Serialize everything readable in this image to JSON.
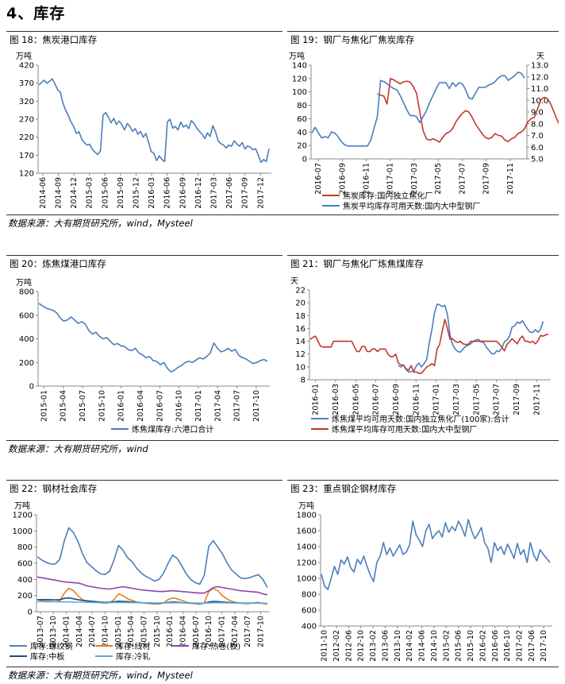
{
  "section_title": "4、库存",
  "sources": {
    "row1": "数据来源：大有期货研究所，wind，Mysteel",
    "row2": "数据来源：大有期货研究所，wind",
    "row3": "数据来源：大有期货研究所，wind，Mysteel"
  },
  "chart_data": [
    {
      "id": "fig18",
      "type": "line",
      "title": "图 18：焦炭港口库存",
      "unit_label": "万吨",
      "ylim": [
        120,
        420
      ],
      "yticks": [
        120,
        170,
        220,
        270,
        320,
        370,
        420
      ],
      "x_tick_labels": [
        "2014-06",
        "2014-09",
        "2014-12",
        "2015-03",
        "2015-06",
        "2015-09",
        "2015-12",
        "2016-03",
        "2016-06",
        "2016-09",
        "2016-12",
        "2017-03",
        "2017-06",
        "2017-09",
        "2017-12"
      ],
      "series": [
        {
          "color": "#4a7ebb",
          "values": [
            365,
            372,
            378,
            370,
            375,
            382,
            368,
            352,
            345,
            315,
            295,
            280,
            262,
            250,
            230,
            235,
            215,
            205,
            198,
            200,
            186,
            178,
            172,
            182,
            282,
            288,
            275,
            260,
            272,
            255,
            265,
            255,
            240,
            258,
            250,
            236,
            244,
            228,
            236,
            220,
            230,
            205,
            180,
            175,
            155,
            168,
            158,
            152,
            262,
            270,
            245,
            250,
            240,
            262,
            248,
            254,
            244,
            266,
            258,
            245,
            236,
            228,
            216,
            232,
            222,
            252,
            235,
            210,
            202,
            198,
            190,
            198,
            195,
            210,
            201,
            195,
            205,
            187,
            196,
            192,
            185,
            188,
            170,
            150,
            158,
            152,
            188
          ]
        }
      ]
    },
    {
      "id": "fig19",
      "type": "line",
      "title": "图 19：钢厂与焦化厂焦炭库存",
      "unit_label": "万吨",
      "unit_label_right": "天",
      "ylim": [
        0,
        140
      ],
      "yticks": [
        0,
        20,
        40,
        60,
        80,
        100,
        120,
        140
      ],
      "y2lim": [
        5.0,
        13.0
      ],
      "y2ticks": [
        "5.0",
        "6.0",
        "7.0",
        "8.0",
        "9.0",
        "10.0",
        "11.0",
        "12.0",
        "13.0"
      ],
      "x_tick_labels": [
        "2016-07",
        "2016-09",
        "2016-11",
        "2017-01",
        "2017-03",
        "2017-05",
        "2017-07",
        "2017-09",
        "2017-11"
      ],
      "series": [
        {
          "name": "焦炭库存:国内独立焦化厂",
          "color": "#c0392b",
          "axis": "left",
          "start_index": 20,
          "values": [
            97,
            95,
            94,
            82,
            120,
            118,
            115,
            112,
            115,
            116,
            115,
            108,
            98,
            70,
            42,
            30,
            28,
            30,
            28,
            25,
            32,
            38,
            40,
            45,
            55,
            62,
            68,
            72,
            70,
            62,
            52,
            45,
            38,
            32,
            30,
            32,
            38,
            35,
            34,
            28,
            26,
            30,
            32,
            38,
            40,
            45,
            55,
            60,
            62,
            75,
            88,
            92,
            90,
            82,
            70,
            58,
            48,
            38,
            30,
            30
          ]
        },
        {
          "name": "焦炭平均库存可用天数:国内大中型钢厂",
          "color": "#4a7ebb",
          "axis": "right",
          "values": [
            7.2,
            7.7,
            7.2,
            6.8,
            6.9,
            6.8,
            7.3,
            7.2,
            6.9,
            6.5,
            6.2,
            6.1,
            6.1,
            6.1,
            6.1,
            6.1,
            6.1,
            6.1,
            6.6,
            7.6,
            8.6,
            11.7,
            11.6,
            11.4,
            11.2,
            11.0,
            10.9,
            10.4,
            9.8,
            9.2,
            8.7,
            8.7,
            8.6,
            8.1,
            8.6,
            9.1,
            9.8,
            10.4,
            11.0,
            11.5,
            11.5,
            11.5,
            11.0,
            11.5,
            11.2,
            11.5,
            11.4,
            10.9,
            10.2,
            10.1,
            10.6,
            11.1,
            11.1,
            11.1,
            11.3,
            11.4,
            11.6,
            11.9,
            12.1,
            12.1,
            11.7,
            11.9,
            12.1,
            12.4,
            12.3,
            11.9
          ]
        }
      ]
    },
    {
      "id": "fig20",
      "type": "line",
      "title": "图 20：炼焦煤港口库存",
      "unit_label": "万吨",
      "ylim": [
        0,
        800
      ],
      "yticks": [
        0,
        200,
        400,
        600,
        800
      ],
      "x_tick_labels": [
        "2015-01",
        "2015-04",
        "2015-07",
        "2015-10",
        "2016-01",
        "2016-04",
        "2016-07",
        "2016-10",
        "2017-01",
        "2017-04",
        "2017-07",
        "2017-10"
      ],
      "series": [
        {
          "name": "炼焦煤库存:六港口合计",
          "color": "#4a7ebb",
          "values": [
            700,
            680,
            660,
            650,
            640,
            620,
            575,
            550,
            560,
            585,
            560,
            530,
            545,
            525,
            470,
            440,
            455,
            420,
            400,
            410,
            380,
            350,
            360,
            340,
            335,
            310,
            300,
            320,
            280,
            265,
            240,
            250,
            215,
            210,
            180,
            200,
            150,
            120,
            135,
            160,
            175,
            200,
            210,
            200,
            220,
            240,
            230,
            250,
            280,
            365,
            320,
            290,
            300,
            320,
            295,
            310,
            260,
            240,
            230,
            210,
            190,
            200,
            215,
            225,
            210
          ]
        }
      ]
    },
    {
      "id": "fig21",
      "type": "line",
      "title": "图 21：钢厂与焦化厂炼焦煤库存",
      "unit_label": "天",
      "ylim": [
        8,
        22
      ],
      "yticks": [
        8,
        10,
        12,
        14,
        16,
        18,
        20,
        22
      ],
      "x_tick_labels": [
        "2016-01",
        "2016-03",
        "2016-05",
        "2016-07",
        "2016-09",
        "2016-11",
        "2017-01",
        "2017-03",
        "2017-05",
        "2017-07",
        "2017-09",
        "2017-11"
      ],
      "series": [
        {
          "name": "炼焦煤平均可用天数:国内独立焦化厂(100家):合计",
          "color": "#4a7ebb",
          "start_index": 34,
          "values": [
            10.2,
            10.0,
            10.3,
            9.6,
            9.2,
            9.3,
            9.3,
            10.2,
            10.6,
            10.0,
            10.5,
            11.2,
            13.8,
            15.8,
            18.4,
            19.8,
            19.7,
            19.4,
            19.6,
            18.2,
            15.0,
            13.5,
            12.8,
            12.4,
            12.3,
            12.8,
            13.2,
            13.4,
            13.6,
            14.0,
            14.2,
            14.3,
            13.9,
            13.8,
            13.1,
            12.6,
            12.1,
            12.0,
            12.5,
            12.4,
            12.9,
            13.9,
            14.2,
            14.8,
            16.2,
            16.4,
            17.0,
            16.8,
            17.2,
            16.5,
            15.9,
            15.4,
            15.4,
            15.8,
            15.4,
            15.9,
            17.1
          ]
        },
        {
          "name": "炼焦煤平均库存可用天数:国内大中型钢厂",
          "color": "#c0392b",
          "values": [
            14.3,
            14.6,
            14.8,
            14.0,
            13.2,
            13.1,
            13.1,
            13.1,
            13.1,
            14.0,
            14.0,
            14.0,
            14.0,
            14.0,
            14.0,
            14.0,
            14.0,
            13.2,
            12.4,
            12.4,
            13.2,
            13.2,
            12.4,
            12.4,
            12.8,
            12.8,
            12.4,
            12.8,
            12.8,
            12.8,
            12.0,
            11.6,
            11.6,
            12.0,
            10.6,
            10.3,
            10.3,
            9.7,
            9.5,
            10.2,
            9.2,
            9.2,
            9.0,
            9.0,
            9.5,
            10.0,
            10.2,
            10.5,
            10.2,
            12.8,
            13.5,
            15.6,
            17.4,
            16.0,
            14.3,
            14.4,
            14.0,
            13.8,
            14.0,
            13.6,
            13.5,
            13.5,
            14.0,
            14.0,
            14.0,
            14.0,
            14.0,
            14.0,
            14.0,
            14.0,
            14.0,
            14.0,
            14.0,
            13.6,
            13.1,
            12.5,
            13.5,
            13.9,
            14.4,
            14.0,
            13.6,
            14.4,
            14.8,
            14.0,
            14.0,
            13.8,
            14.0,
            13.6,
            14.1,
            14.9,
            14.8,
            15.0,
            15.1
          ]
        }
      ]
    },
    {
      "id": "fig22",
      "type": "line",
      "title": "图 22：钢材社会库存",
      "unit_label": "万吨",
      "ylim": [
        0,
        1200
      ],
      "yticks": [
        0,
        200,
        400,
        600,
        800,
        1000,
        1200
      ],
      "x_tick_labels": [
        "2013-07",
        "2013-10",
        "2014-01",
        "2014-04",
        "2014-07",
        "2014-10",
        "2015-01",
        "2015-04",
        "2015-07",
        "2015-10",
        "2016-01",
        "2016-04",
        "2016-07",
        "2016-10",
        "2017-01",
        "2017-04",
        "2017-07",
        "2017-10"
      ],
      "series": [
        {
          "name": "库存:螺纹钢",
          "color": "#4a7ebb",
          "values": [
            680,
            640,
            610,
            590,
            590,
            650,
            880,
            1040,
            980,
            870,
            720,
            610,
            560,
            510,
            470,
            460,
            500,
            640,
            820,
            760,
            670,
            620,
            540,
            480,
            440,
            410,
            380,
            400,
            480,
            600,
            700,
            660,
            570,
            470,
            400,
            360,
            340,
            450,
            810,
            880,
            800,
            720,
            610,
            520,
            470,
            420,
            410,
            420,
            440,
            460,
            400,
            300
          ]
        },
        {
          "name": "库存:线材",
          "color": "#e67e22",
          "values": [
            150,
            140,
            130,
            130,
            125,
            135,
            230,
            290,
            260,
            200,
            150,
            130,
            120,
            115,
            110,
            105,
            110,
            150,
            220,
            200,
            160,
            140,
            120,
            110,
            105,
            100,
            95,
            95,
            110,
            150,
            170,
            160,
            140,
            120,
            105,
            100,
            95,
            110,
            250,
            290,
            260,
            200,
            160,
            130,
            115,
            105,
            100,
            100,
            110,
            115,
            100,
            95
          ]
        },
        {
          "name": "库存:热卷(板)",
          "color": "#8e44ad",
          "values": [
            430,
            420,
            410,
            400,
            390,
            380,
            370,
            365,
            360,
            355,
            340,
            320,
            310,
            300,
            290,
            285,
            280,
            290,
            300,
            310,
            300,
            290,
            280,
            270,
            265,
            260,
            255,
            250,
            250,
            255,
            260,
            255,
            250,
            245,
            240,
            235,
            230,
            230,
            260,
            300,
            310,
            300,
            290,
            280,
            270,
            260,
            255,
            250,
            245,
            240,
            220,
            210
          ]
        },
        {
          "name": "库存:中板",
          "color": "#1f4e79",
          "values": [
            150,
            150,
            150,
            150,
            148,
            150,
            165,
            170,
            160,
            150,
            140,
            135,
            130,
            125,
            120,
            118,
            118,
            122,
            130,
            128,
            125,
            120,
            115,
            112,
            108,
            106,
            105,
            104,
            108,
            115,
            120,
            118,
            112,
            108,
            105,
            103,
            100,
            105,
            120,
            128,
            125,
            120,
            116,
            112,
            110,
            108,
            106,
            106,
            106,
            108,
            104,
            102
          ]
        },
        {
          "name": "库存:冷轧",
          "color": "#5dade2",
          "values": [
            125,
            125,
            124,
            124,
            123,
            122,
            122,
            121,
            120,
            120,
            118,
            116,
            115,
            114,
            113,
            112,
            112,
            113,
            114,
            114,
            113,
            112,
            111,
            110,
            110,
            109,
            108,
            108,
            108,
            109,
            110,
            110,
            109,
            108,
            108,
            107,
            106,
            106,
            108,
            110,
            110,
            110,
            109,
            108,
            107,
            106,
            106,
            105,
            105,
            105,
            104,
            103
          ]
        }
      ]
    },
    {
      "id": "fig23",
      "type": "line",
      "title": "图 23：重点钢企钢材库存",
      "unit_label": "万吨",
      "ylim": [
        400,
        1800
      ],
      "yticks": [
        400,
        600,
        800,
        1000,
        1200,
        1400,
        1600,
        1800
      ],
      "x_tick_labels": [
        "2011-10",
        "2012-02",
        "2012-06",
        "2012-10",
        "2013-02",
        "2013-06",
        "2013-10",
        "2014-02",
        "2014-06",
        "2014-10",
        "2015-02",
        "2015-06",
        "2015-10",
        "2016-02",
        "2016-06",
        "2016-10",
        "2017-02",
        "2017-06",
        "2017-10"
      ],
      "series": [
        {
          "color": "#4a7ebb",
          "values": [
            1050,
            900,
            860,
            1000,
            1150,
            1050,
            1230,
            1180,
            1270,
            1130,
            1080,
            1240,
            1180,
            1280,
            1150,
            1040,
            960,
            1200,
            1280,
            1450,
            1300,
            1380,
            1280,
            1350,
            1420,
            1300,
            1330,
            1420,
            1720,
            1550,
            1480,
            1400,
            1600,
            1680,
            1500,
            1560,
            1600,
            1520,
            1700,
            1580,
            1650,
            1600,
            1720,
            1640,
            1530,
            1740,
            1600,
            1500,
            1560,
            1640,
            1450,
            1380,
            1200,
            1450,
            1350,
            1400,
            1300,
            1430,
            1350,
            1250,
            1440,
            1300,
            1360,
            1200,
            1450,
            1300,
            1220,
            1360,
            1300,
            1250,
            1200
          ]
        }
      ]
    }
  ],
  "legend_fig22": {
    "rebar": "库存:螺纹钢",
    "wire": "库存:线材",
    "hotcoil": "库存:热卷(板)",
    "plate": "库存:中板",
    "coldroll": "库存:冷轧"
  }
}
